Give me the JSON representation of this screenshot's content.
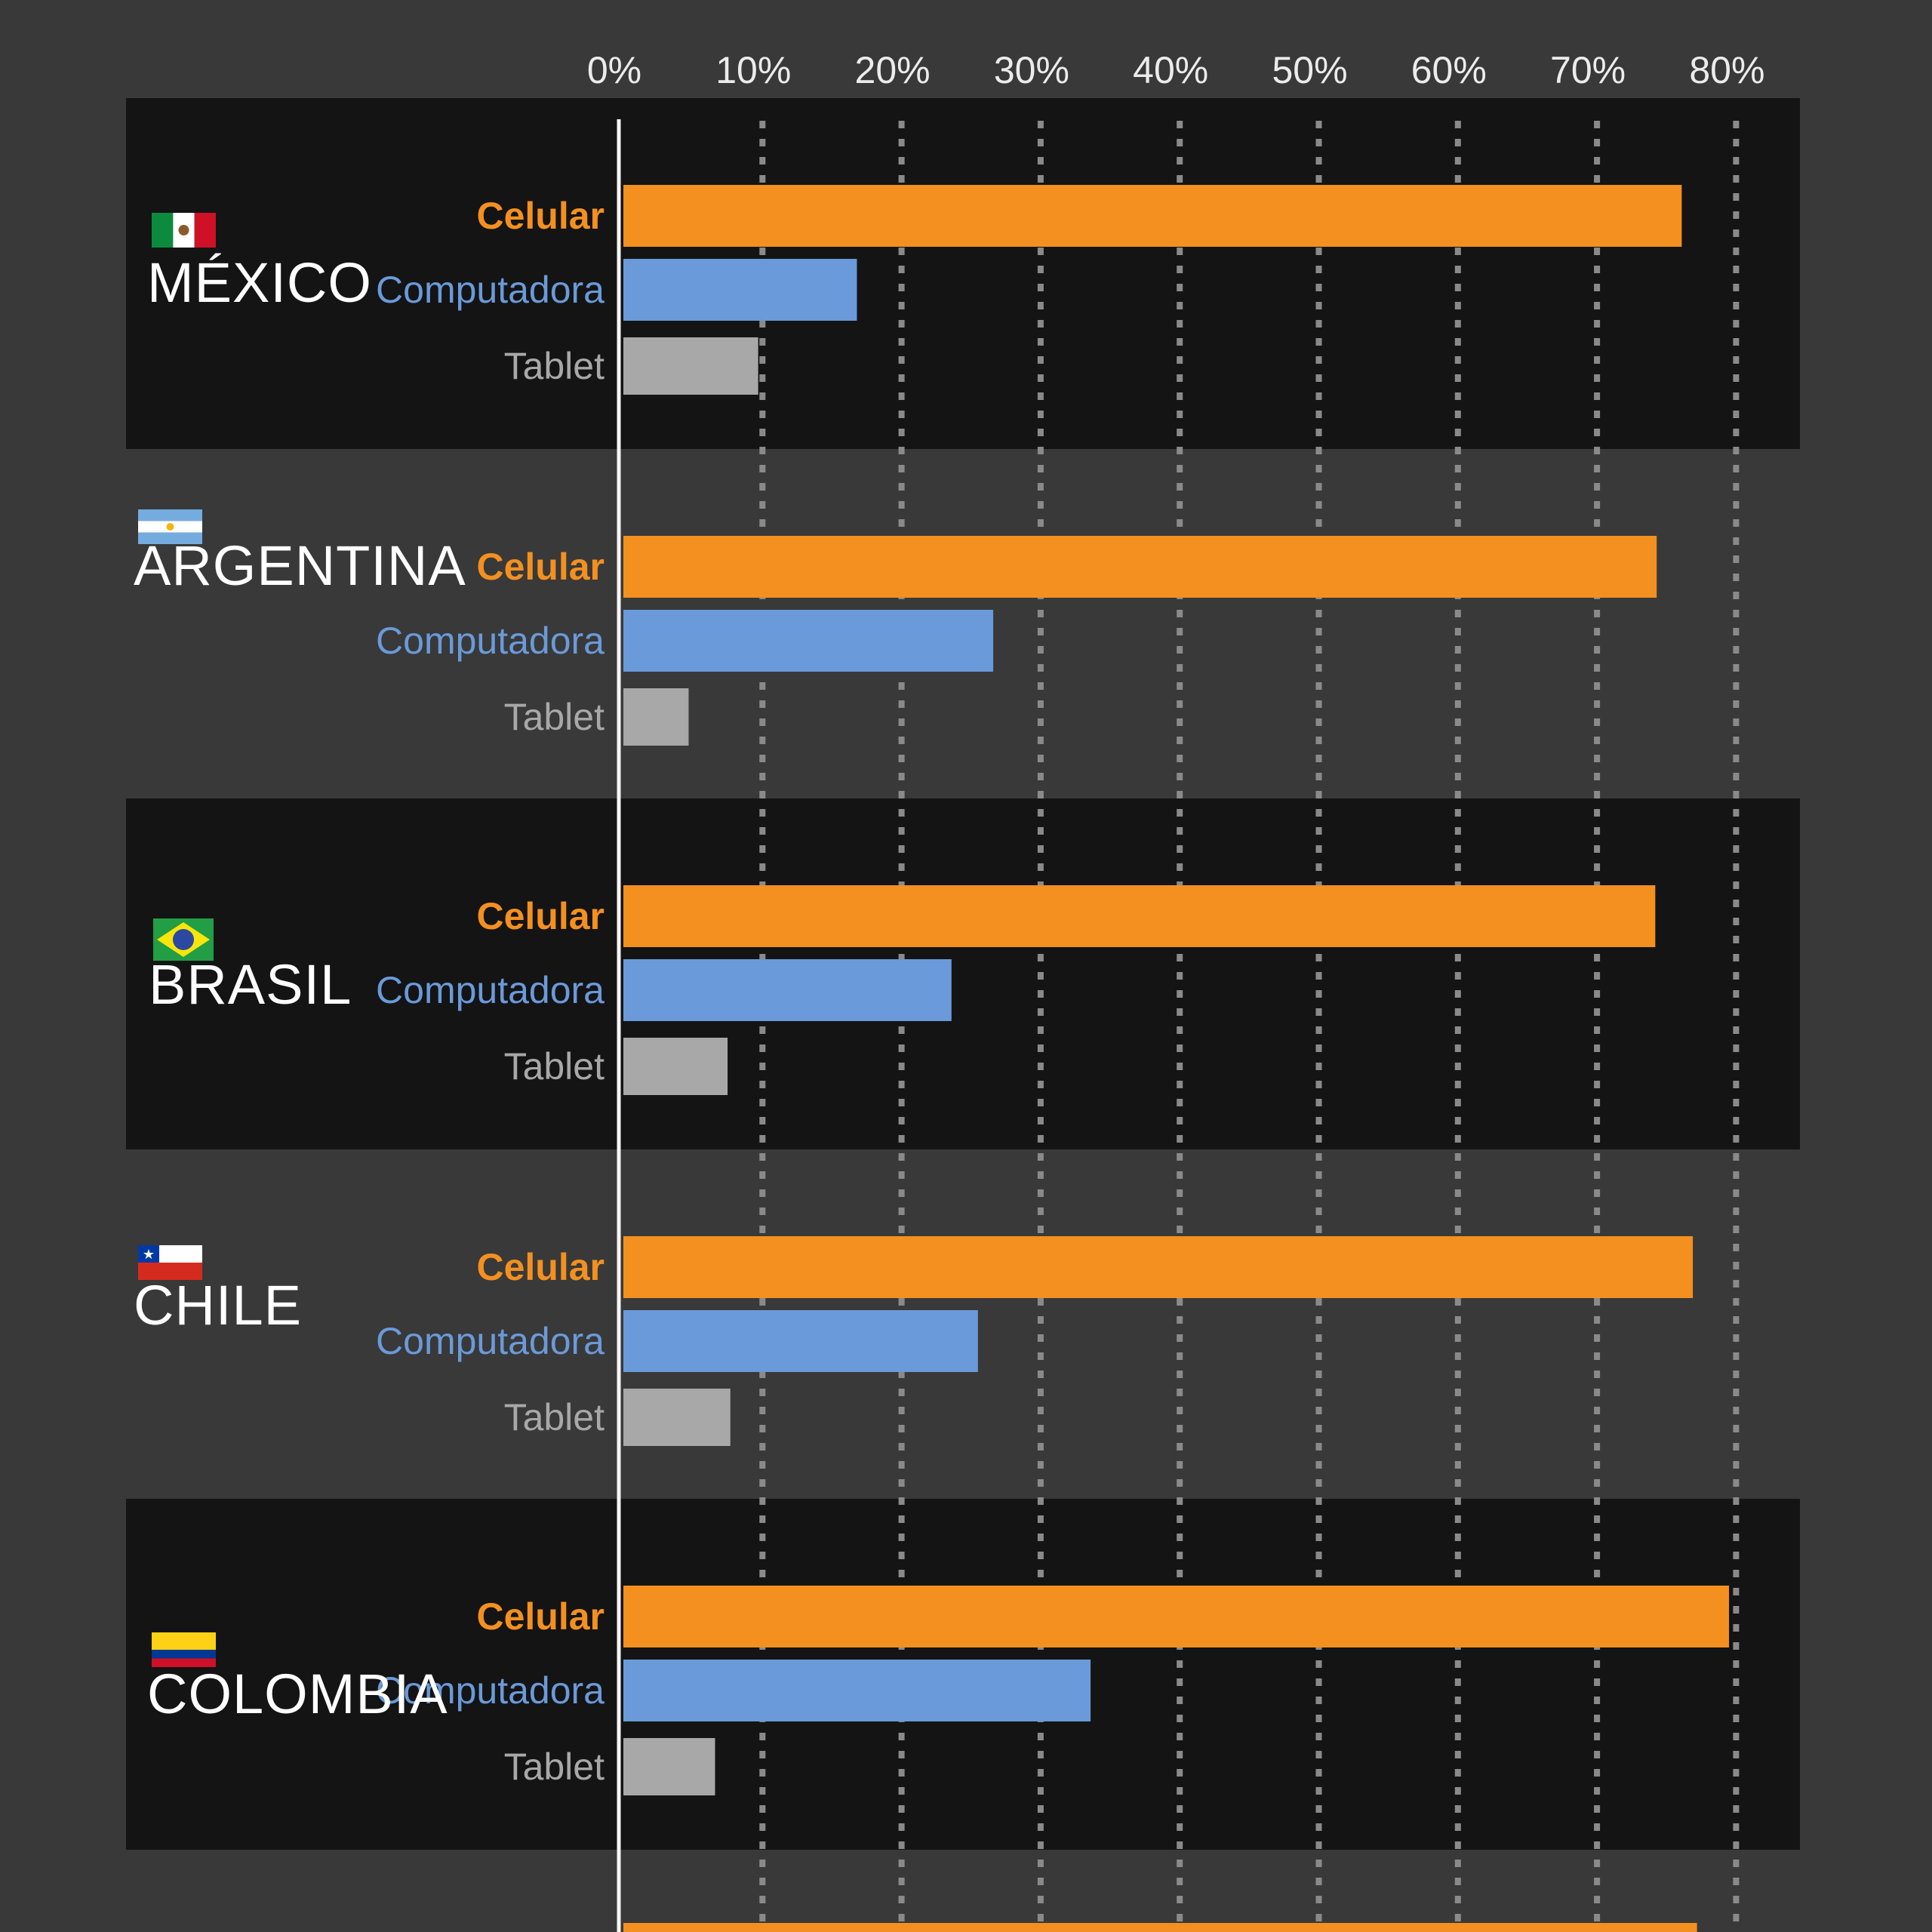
{
  "chart_data": {
    "type": "bar",
    "orientation": "horizontal",
    "title": "",
    "xlabel": "",
    "ylabel": "",
    "xlim": [
      0,
      85
    ],
    "x_ticks": [
      "0%",
      "10%",
      "20%",
      "30%",
      "40%",
      "50%",
      "60%",
      "70%",
      "80%"
    ],
    "x_tick_values": [
      0,
      10,
      20,
      30,
      40,
      50,
      60,
      70,
      80
    ],
    "grid": true,
    "series": [
      {
        "name": "Celular",
        "color": "#f39020",
        "bold": true
      },
      {
        "name": "Computadora",
        "color": "#6a9ad9",
        "bold": false
      },
      {
        "name": "Tablet",
        "color": "#a8a8a8",
        "bold": false
      }
    ],
    "groups": [
      {
        "country": "MÉXICO",
        "flag": "mexico-flag",
        "values": [
          76.2,
          16.9,
          9.8
        ]
      },
      {
        "country": "ARGENTINA",
        "flag": "argentina-flag",
        "values": [
          74.4,
          26.7,
          4.8
        ]
      },
      {
        "country": "BRASIL",
        "flag": "brazil-flag",
        "values": [
          74.3,
          23.7,
          7.6
        ]
      },
      {
        "country": "CHILE",
        "flag": "chile-flag",
        "values": [
          77.0,
          25.6,
          7.8
        ]
      },
      {
        "country": "COLOMBIA",
        "flag": "colombia-flag",
        "values": [
          79.6,
          33.7,
          6.7
        ]
      }
    ],
    "partial_next_group": {
      "values": [
        77.3
      ]
    },
    "colors": {
      "background": "#393939",
      "band": "#141414",
      "gridline": "#8a8a8a",
      "axis": "#f5f5f5"
    }
  }
}
